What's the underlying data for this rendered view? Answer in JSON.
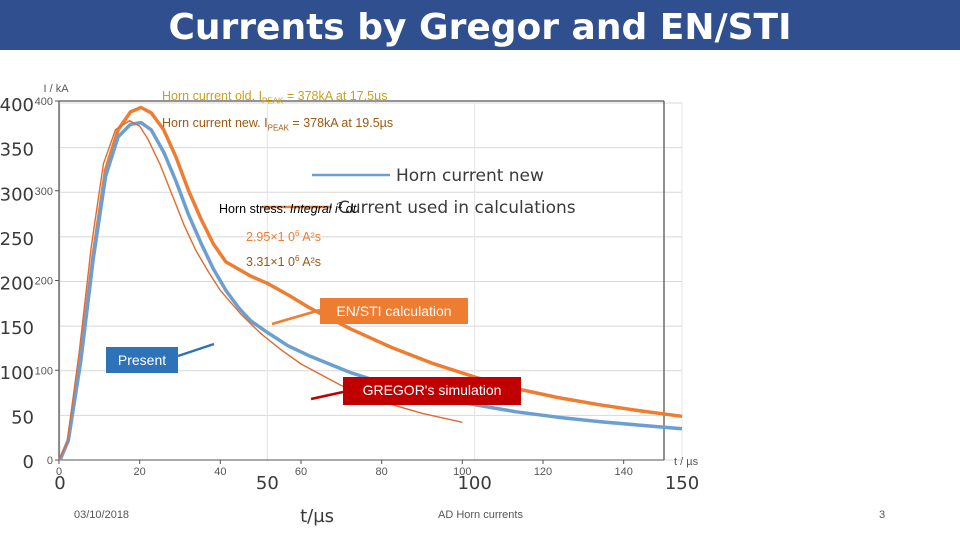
{
  "slide": {
    "title": "Currents by Gregor and EN/STI",
    "footer_date": "03/10/2018",
    "footer_center": "AD Horn currents",
    "page_number": "3"
  },
  "colors": {
    "title_bar": "#2f4f8f",
    "horn_current_new": "#6a9fd0",
    "current_used_in_calculations": "#ee7d31",
    "old_gold": "#c8a218",
    "new_brown": "#9a5a10",
    "present_box": "#2e72b8",
    "en_sti_box": "#ee7d31",
    "gregor_box": "#c00000"
  },
  "annotations": {
    "old_note_prefix": "Horn current old. I",
    "old_note_sub": "PEAK",
    "old_note_suffix": " = 378kA at 17.5µs",
    "new_note_prefix": "Horn current new. I",
    "new_note_sub": "PEAK",
    "new_note_suffix": " = 378kA at 19.5µs",
    "stress_label": "Horn stress: ",
    "stress_integral": "Integral i",
    "stress_integral_exp": "2",
    "stress_integral_tail": " dt",
    "stress_value_1": "2.95×1 0",
    "stress_value_1_exp": "6",
    "stress_value_1_unit": " A²s",
    "stress_value_2": "3.31×1 0",
    "stress_value_2_exp": "6",
    "stress_value_2_unit": " A²s",
    "en_sti_label": "EN/STI calculation",
    "gregor_label": "GREGOR's simulation",
    "present_label": "Present"
  },
  "chart_data": [
    {
      "type": "line",
      "xlabel": "t/µs",
      "ylabel": "",
      "xlim": [
        0,
        150
      ],
      "ylim": [
        0,
        400
      ],
      "x_ticks": [
        "0",
        "50",
        "100",
        "150"
      ],
      "y_ticks": [
        "0",
        "50",
        "100",
        "150",
        "200",
        "250",
        "300",
        "350",
        "400"
      ],
      "legend": {
        "position": "top-right",
        "entries": [
          "Horn current new",
          "Current used in calculations"
        ]
      },
      "series": [
        {
          "name": "Horn current new",
          "x": [
            0,
            2,
            5,
            8,
            11,
            14,
            17,
            19.5,
            22,
            25,
            28,
            31,
            34,
            37,
            40,
            43,
            46,
            50,
            55,
            60,
            70,
            80,
            90,
            100,
            110,
            120,
            130,
            140,
            150
          ],
          "y": [
            0,
            22,
            110,
            225,
            318,
            362,
            376,
            378,
            370,
            345,
            312,
            275,
            243,
            214,
            190,
            171,
            156,
            143,
            128,
            117,
            98,
            83,
            71,
            62,
            54,
            48,
            43,
            39,
            35
          ]
        },
        {
          "name": "Current used in calculations",
          "x": [
            0,
            2,
            5,
            8,
            11,
            14,
            17,
            19.5,
            22,
            25,
            28,
            31,
            34,
            37,
            40,
            43,
            46,
            50,
            55,
            60,
            70,
            80,
            90,
            100,
            110,
            120,
            130,
            140,
            150
          ],
          "y": [
            0,
            22,
            115,
            230,
            325,
            370,
            390,
            395,
            389,
            370,
            339,
            302,
            270,
            242,
            222,
            214,
            206,
            198,
            185,
            171,
            147,
            126,
            108,
            93,
            80,
            70,
            62,
            55,
            49
          ]
        }
      ]
    },
    {
      "type": "line",
      "xlabel": "",
      "ylabel": "I / kA",
      "x_ticks_label": "t / µs",
      "xlim": [
        0,
        150
      ],
      "ylim": [
        0,
        400
      ],
      "x_ticks": [
        "0",
        "20",
        "40",
        "60",
        "80",
        "100",
        "120",
        "140"
      ],
      "y_ticks": [
        "0",
        "100",
        "200",
        "300",
        "400"
      ],
      "series": [
        {
          "name": "Horn current old. IPEAK = 378kA at 17.5µs",
          "x": [
            0,
            2,
            5,
            8,
            11,
            14,
            17.5,
            20,
            22,
            25,
            28,
            31,
            34,
            37,
            40,
            45,
            50,
            55,
            60,
            70,
            80,
            90,
            100
          ],
          "y": [
            0,
            20,
            120,
            238,
            330,
            368,
            378,
            372,
            358,
            330,
            296,
            262,
            233,
            210,
            189,
            163,
            141,
            123,
            107,
            83,
            65,
            52,
            42
          ]
        }
      ]
    }
  ]
}
